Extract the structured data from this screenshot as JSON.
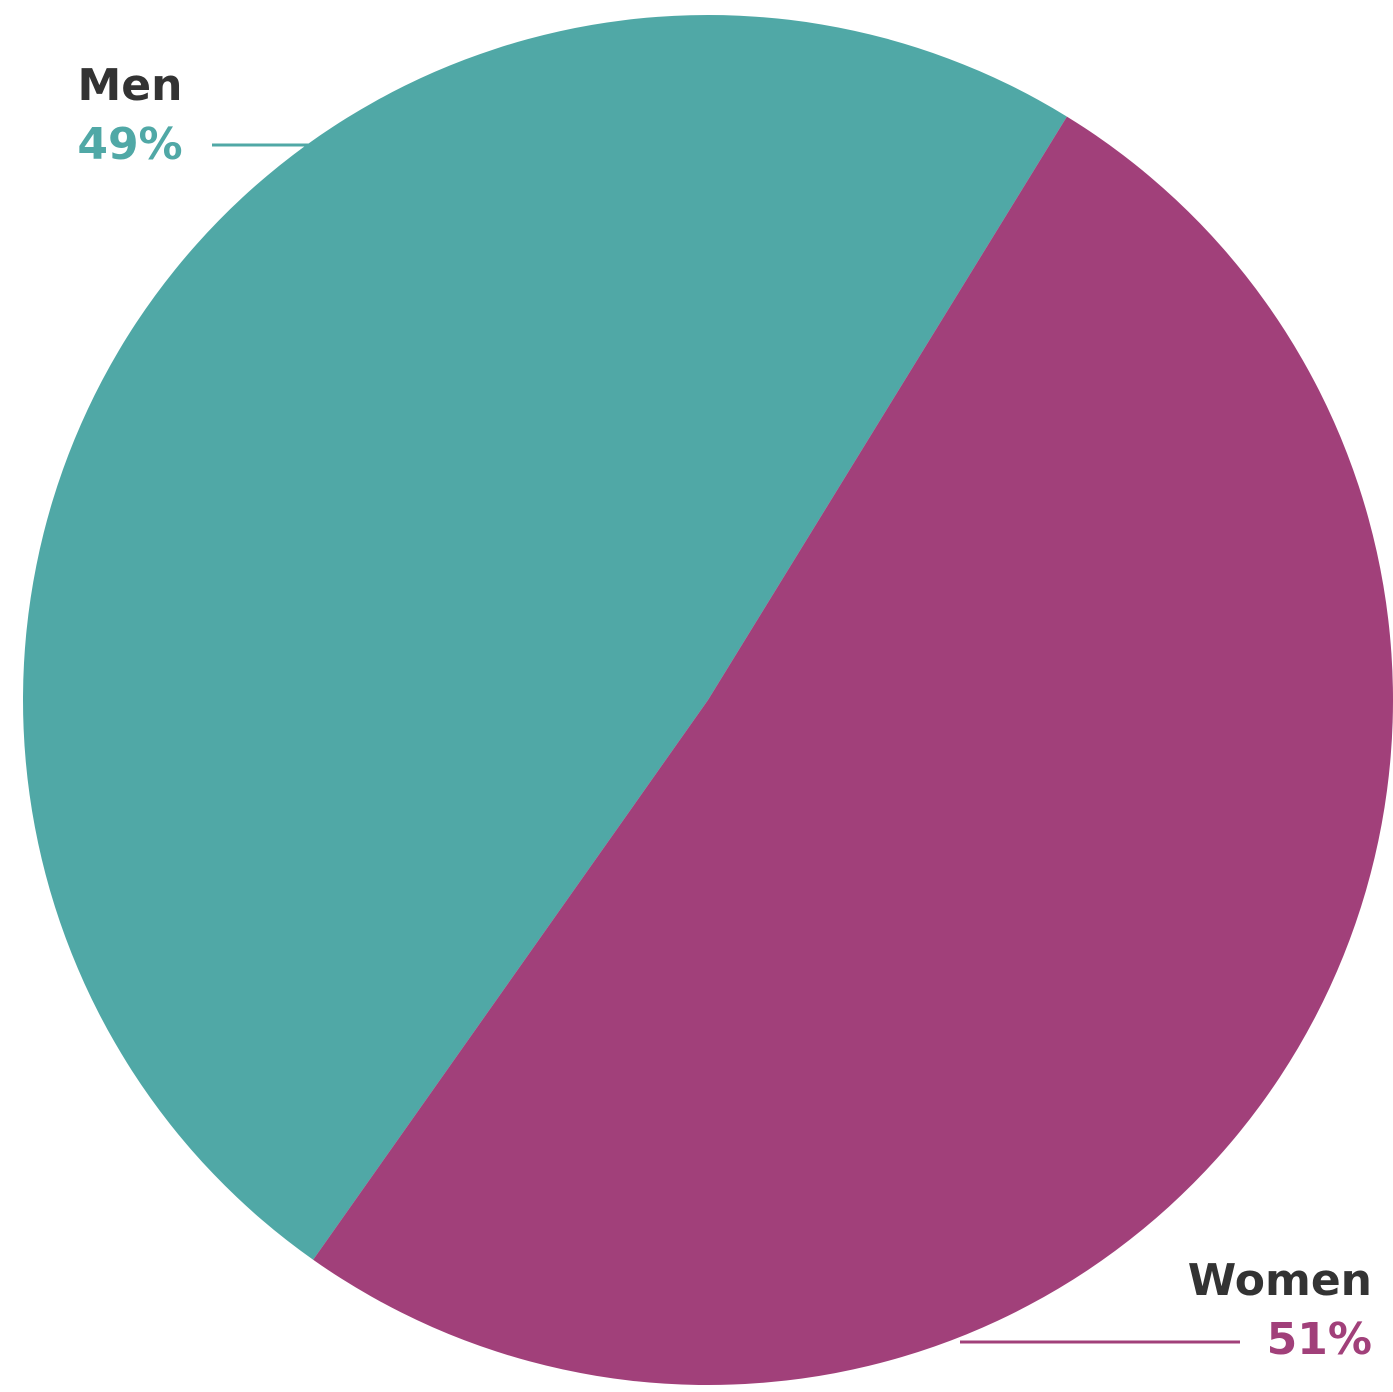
{
  "chart_data": {
    "type": "pie",
    "categories": [
      "Men",
      "Women"
    ],
    "values": [
      49,
      51
    ],
    "value_labels": [
      "49%",
      "51%"
    ],
    "colors": [
      "#50a8a6",
      "#a1407a"
    ]
  }
}
